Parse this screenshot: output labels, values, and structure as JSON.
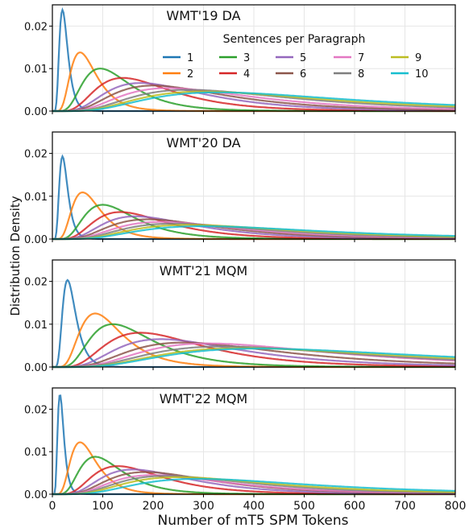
{
  "figure": {
    "ylabel": "Distribution Density",
    "xlabel": "Number of mT5 SPM Tokens",
    "legend_title": "Sentences per Paragraph"
  },
  "chart_data": [
    {
      "type": "line",
      "title": "WMT'19 DA",
      "xlim": [
        0,
        800
      ],
      "ylim": [
        0,
        0.025
      ],
      "yticks": [
        "0.00",
        "0.01",
        "0.02"
      ],
      "grid": true,
      "legend": "top-right",
      "series": [
        {
          "name": "1",
          "color": "#1f77b4",
          "peak_x": 20,
          "peak_y": 0.0238
        },
        {
          "name": "2",
          "color": "#ff7f0e",
          "peak_x": 55,
          "peak_y": 0.0138
        },
        {
          "name": "3",
          "color": "#2ca02c",
          "peak_x": 95,
          "peak_y": 0.01
        },
        {
          "name": "4",
          "color": "#d62728",
          "peak_x": 140,
          "peak_y": 0.0078
        },
        {
          "name": "5",
          "color": "#9467bd",
          "peak_x": 175,
          "peak_y": 0.0066
        },
        {
          "name": "6",
          "color": "#8c564b",
          "peak_x": 200,
          "peak_y": 0.006
        },
        {
          "name": "7",
          "color": "#e377c2",
          "peak_x": 230,
          "peak_y": 0.0054
        },
        {
          "name": "8",
          "color": "#7f7f7f",
          "peak_x": 270,
          "peak_y": 0.005
        },
        {
          "name": "9",
          "color": "#bcbd22",
          "peak_x": 300,
          "peak_y": 0.0046
        },
        {
          "name": "10",
          "color": "#17becf",
          "peak_x": 330,
          "peak_y": 0.0044
        }
      ]
    },
    {
      "type": "line",
      "title": "WMT'20 DA",
      "xlim": [
        0,
        800
      ],
      "ylim": [
        0,
        0.025
      ],
      "yticks": [
        "0.00",
        "0.01",
        "0.02"
      ],
      "grid": true,
      "series": [
        {
          "name": "1",
          "color": "#1f77b4",
          "peak_x": 20,
          "peak_y": 0.0193
        },
        {
          "name": "2",
          "color": "#ff7f0e",
          "peak_x": 60,
          "peak_y": 0.0109
        },
        {
          "name": "3",
          "color": "#2ca02c",
          "peak_x": 100,
          "peak_y": 0.008
        },
        {
          "name": "4",
          "color": "#d62728",
          "peak_x": 135,
          "peak_y": 0.0063
        },
        {
          "name": "5",
          "color": "#9467bd",
          "peak_x": 165,
          "peak_y": 0.0053
        },
        {
          "name": "6",
          "color": "#8c564b",
          "peak_x": 190,
          "peak_y": 0.0046
        },
        {
          "name": "7",
          "color": "#e377c2",
          "peak_x": 215,
          "peak_y": 0.004
        },
        {
          "name": "8",
          "color": "#7f7f7f",
          "peak_x": 240,
          "peak_y": 0.0036
        },
        {
          "name": "9",
          "color": "#bcbd22",
          "peak_x": 270,
          "peak_y": 0.0033
        },
        {
          "name": "10",
          "color": "#17becf",
          "peak_x": 300,
          "peak_y": 0.003
        }
      ]
    },
    {
      "type": "line",
      "title": "WMT'21 MQM",
      "xlim": [
        0,
        800
      ],
      "ylim": [
        0,
        0.025
      ],
      "yticks": [
        "0.00",
        "0.01",
        "0.02"
      ],
      "grid": true,
      "series": [
        {
          "name": "1",
          "color": "#1f77b4",
          "peak_x": 30,
          "peak_y": 0.0203
        },
        {
          "name": "2",
          "color": "#ff7f0e",
          "peak_x": 85,
          "peak_y": 0.0125
        },
        {
          "name": "3",
          "color": "#2ca02c",
          "peak_x": 120,
          "peak_y": 0.01
        },
        {
          "name": "4",
          "color": "#d62728",
          "peak_x": 175,
          "peak_y": 0.008
        },
        {
          "name": "5",
          "color": "#9467bd",
          "peak_x": 215,
          "peak_y": 0.0065
        },
        {
          "name": "6",
          "color": "#8c564b",
          "peak_x": 260,
          "peak_y": 0.0057
        },
        {
          "name": "7",
          "color": "#e377c2",
          "peak_x": 310,
          "peak_y": 0.0055
        },
        {
          "name": "8",
          "color": "#7f7f7f",
          "peak_x": 340,
          "peak_y": 0.0048
        },
        {
          "name": "9",
          "color": "#bcbd22",
          "peak_x": 380,
          "peak_y": 0.0044
        },
        {
          "name": "10",
          "color": "#17becf",
          "peak_x": 410,
          "peak_y": 0.0043
        }
      ]
    },
    {
      "type": "line",
      "title": "WMT'22 MQM",
      "xlim": [
        0,
        800
      ],
      "ylim": [
        0,
        0.025
      ],
      "xticks": [
        "0",
        "100",
        "200",
        "300",
        "400",
        "500",
        "600",
        "700",
        "800"
      ],
      "yticks": [
        "0.00",
        "0.01",
        "0.02"
      ],
      "grid": true,
      "series": [
        {
          "name": "1",
          "color": "#1f77b4",
          "peak_x": 15,
          "peak_y": 0.0235
        },
        {
          "name": "2",
          "color": "#ff7f0e",
          "peak_x": 55,
          "peak_y": 0.0122
        },
        {
          "name": "3",
          "color": "#2ca02c",
          "peak_x": 85,
          "peak_y": 0.0088
        },
        {
          "name": "4",
          "color": "#d62728",
          "peak_x": 130,
          "peak_y": 0.0066
        },
        {
          "name": "5",
          "color": "#9467bd",
          "peak_x": 160,
          "peak_y": 0.0058
        },
        {
          "name": "6",
          "color": "#8c564b",
          "peak_x": 185,
          "peak_y": 0.0052
        },
        {
          "name": "7",
          "color": "#e377c2",
          "peak_x": 200,
          "peak_y": 0.0045
        },
        {
          "name": "8",
          "color": "#7f7f7f",
          "peak_x": 225,
          "peak_y": 0.0043
        },
        {
          "name": "9",
          "color": "#bcbd22",
          "peak_x": 250,
          "peak_y": 0.004
        },
        {
          "name": "10",
          "color": "#17becf",
          "peak_x": 290,
          "peak_y": 0.0036
        }
      ]
    }
  ]
}
